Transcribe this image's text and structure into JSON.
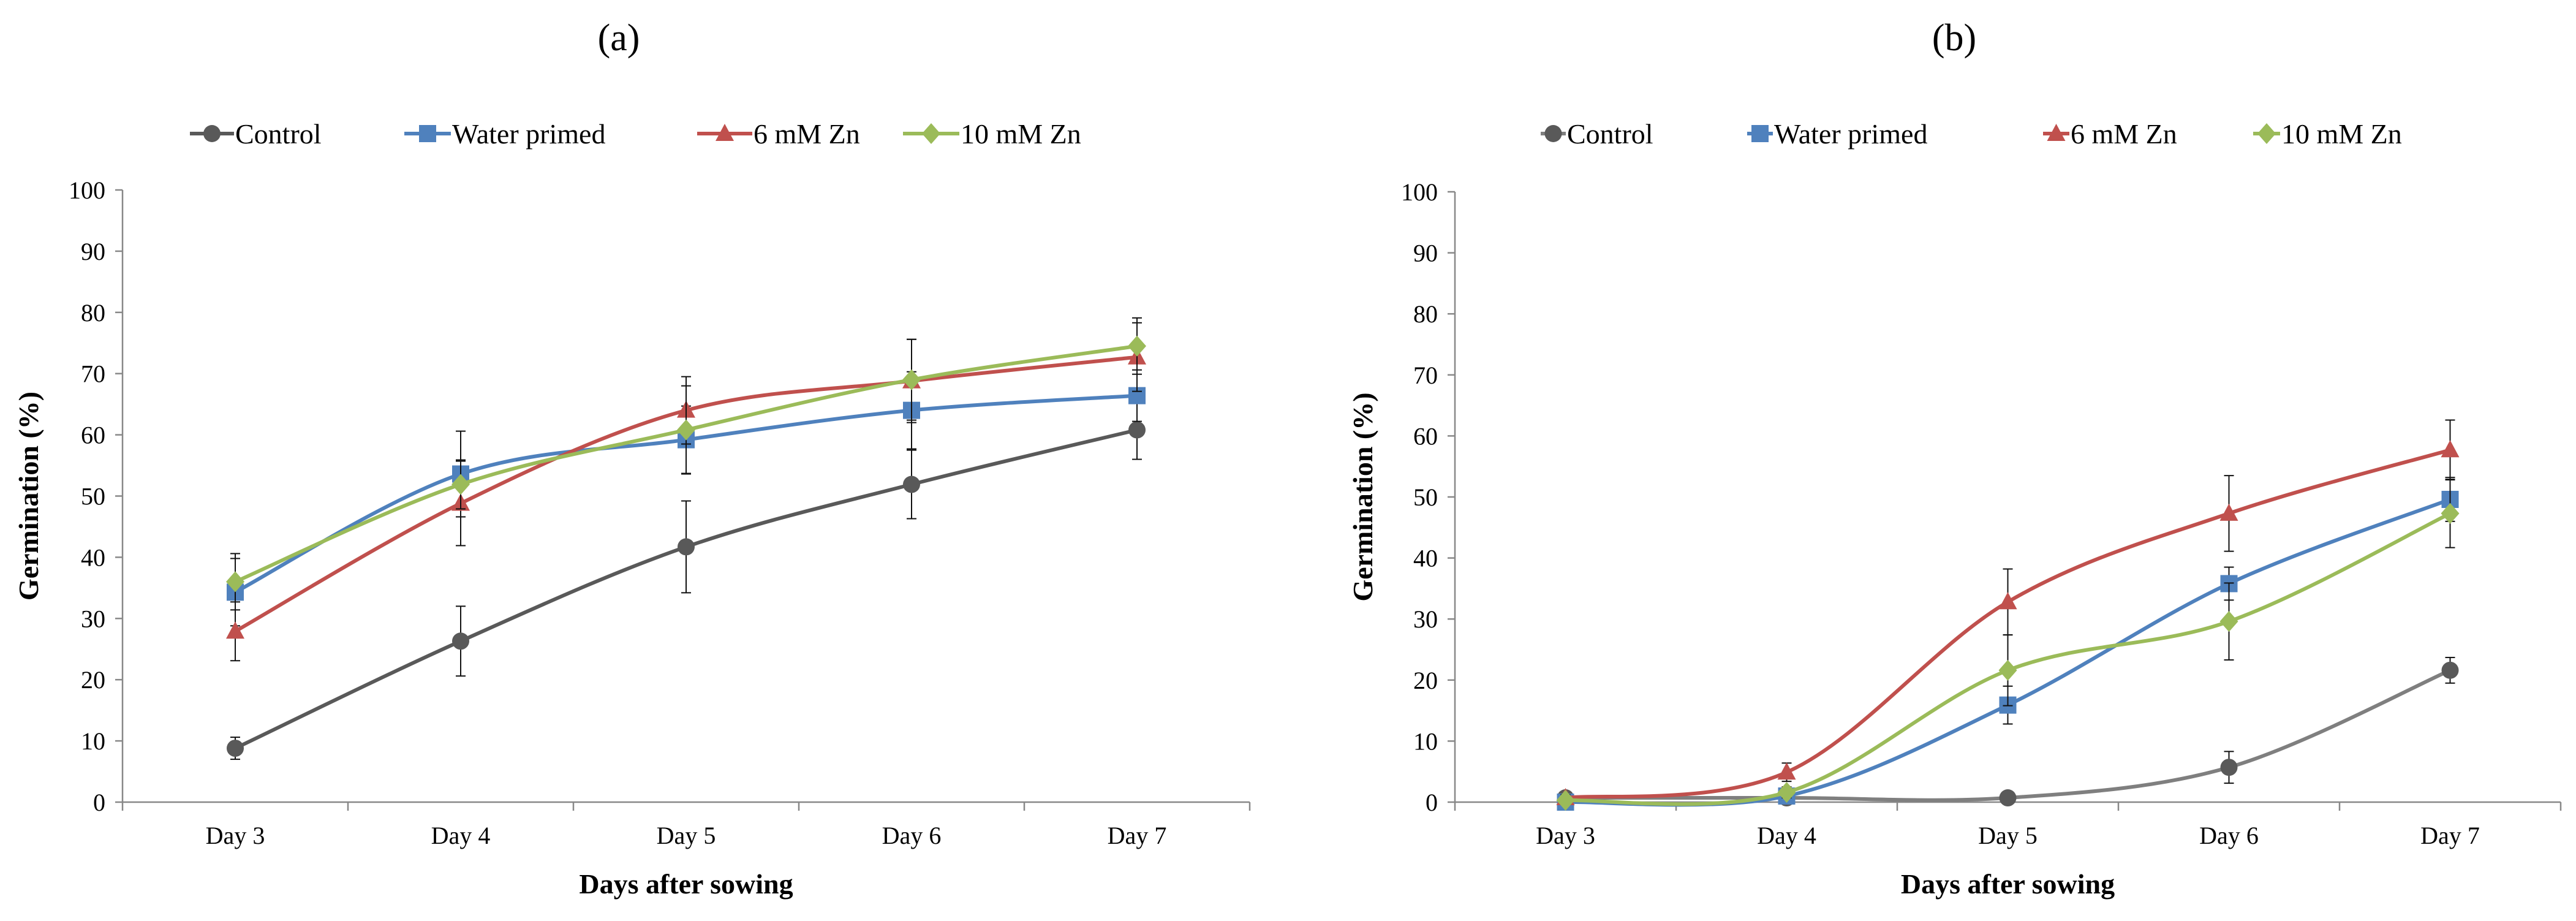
{
  "chart_data": [
    {
      "type": "line",
      "panel_label": "(a)",
      "title": "",
      "xlabel": "Days after sowing",
      "ylabel": "Germination (%)",
      "ylim": [
        0,
        100
      ],
      "yticks": [
        0,
        10,
        20,
        30,
        40,
        50,
        60,
        70,
        80,
        90,
        100
      ],
      "categories": [
        "Day 3",
        "Day 4",
        "Day 5",
        "Day 6",
        "Day 7"
      ],
      "grid": false,
      "legend_position": "top",
      "series": [
        {
          "name": "Control",
          "color": "#595959",
          "marker": "circle",
          "values": [
            8.8,
            26.3,
            41.7,
            51.9,
            60.8
          ],
          "errors": [
            1.8,
            5.7,
            7.5,
            5.6,
            4.8
          ]
        },
        {
          "name": "Water primed",
          "color": "#4f81bd",
          "marker": "square",
          "values": [
            34.3,
            53.6,
            59.2,
            64.0,
            66.4
          ],
          "errors": [
            5.5,
            7.0,
            5.5,
            6.3,
            4.2
          ]
        },
        {
          "name": "6 mM Zn",
          "color": "#c0504d",
          "marker": "triangle",
          "values": [
            27.9,
            48.8,
            64.0,
            68.8,
            72.7
          ],
          "errors": [
            4.8,
            6.9,
            5.5,
            6.8,
            5.6
          ]
        },
        {
          "name": "10 mM Zn",
          "color": "#9bbb59",
          "marker": "diamond",
          "values": [
            36.0,
            51.9,
            60.8,
            69.0,
            74.5
          ],
          "errors": [
            4.6,
            4.0,
            7.2,
            6.6,
            4.6
          ]
        }
      ]
    },
    {
      "type": "line",
      "panel_label": "(b)",
      "title": "",
      "xlabel": "Days after sowing",
      "ylabel": "Germination (%)",
      "ylim": [
        0,
        100
      ],
      "yticks": [
        0,
        10,
        20,
        30,
        40,
        50,
        60,
        70,
        80,
        90,
        100
      ],
      "categories": [
        "Day 3",
        "Day 4",
        "Day 5",
        "Day 6",
        "Day 7"
      ],
      "grid": false,
      "legend_position": "top",
      "series": [
        {
          "name": "Control",
          "color": "#808080",
          "line_color": "#7f7f7f",
          "marker_color": "#595959",
          "marker": "circle",
          "values": [
            0.7,
            0.7,
            0.7,
            5.7,
            21.6
          ],
          "errors": [
            0.5,
            0.5,
            0.5,
            2.6,
            2.1
          ]
        },
        {
          "name": "Water primed",
          "color": "#4f81bd",
          "marker": "square",
          "values": [
            0.0,
            1.0,
            15.9,
            35.8,
            49.6
          ],
          "errors": [
            0.3,
            1.2,
            3.1,
            2.7,
            3.6
          ]
        },
        {
          "name": "6 mM Zn",
          "color": "#c0504d",
          "marker": "triangle",
          "values": [
            0.7,
            4.9,
            32.8,
            47.3,
            57.7
          ],
          "errors": [
            0.5,
            1.5,
            5.4,
            6.2,
            4.9
          ]
        },
        {
          "name": "10 mM Zn",
          "color": "#9bbb59",
          "marker": "diamond",
          "values": [
            0.3,
            1.6,
            21.6,
            29.6,
            47.3
          ],
          "errors": [
            0.3,
            0.9,
            5.8,
            6.3,
            5.6
          ]
        }
      ]
    }
  ]
}
